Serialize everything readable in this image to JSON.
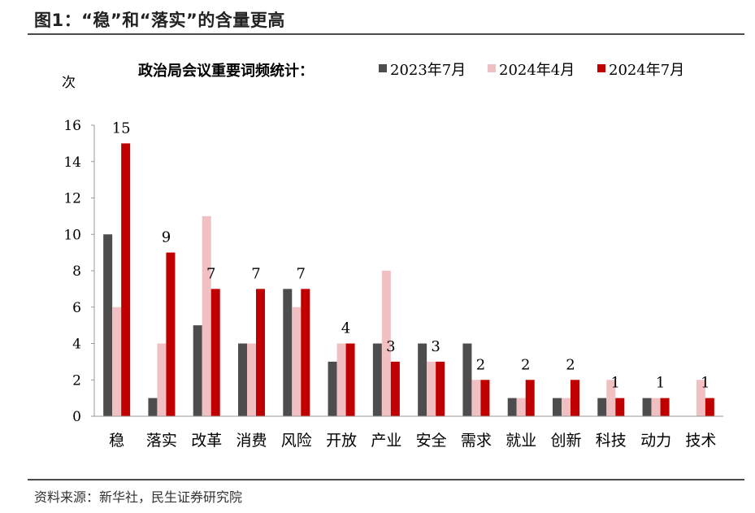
{
  "figure_title": "图1：“稳”和“落实”的含量更高",
  "source": "资料来源：新华社，民生证券研究院",
  "colors": {
    "s2023_07": "#4d4d4d",
    "s2024_04": "#f0c0c3",
    "s2024_07": "#c00000"
  },
  "chart_data": {
    "type": "bar",
    "title": "政治局会议重要词频统计：",
    "ylabel": "次",
    "xlabel": "",
    "ylim": [
      0,
      16
    ],
    "yticks": [
      0,
      2,
      4,
      6,
      8,
      10,
      12,
      14,
      16
    ],
    "grid": false,
    "legend_position": "top",
    "categories": [
      "稳",
      "落实",
      "改革",
      "消费",
      "风险",
      "开放",
      "产业",
      "安全",
      "需求",
      "就业",
      "创新",
      "科技",
      "动力",
      "技术"
    ],
    "series": [
      {
        "name": "2023年7月",
        "values": [
          10,
          1,
          5,
          4,
          7,
          3,
          4,
          4,
          4,
          1,
          1,
          1,
          1,
          0
        ]
      },
      {
        "name": "2024年4月",
        "values": [
          6,
          4,
          11,
          4,
          6,
          4,
          8,
          3,
          2,
          1,
          1,
          2,
          1,
          2
        ]
      },
      {
        "name": "2024年7月",
        "values": [
          15,
          9,
          7,
          7,
          7,
          4,
          3,
          3,
          2,
          2,
          2,
          1,
          1,
          1
        ]
      }
    ],
    "data_labels": [
      "15",
      "9",
      "7",
      "7",
      "7",
      "4",
      "3",
      "3",
      "2",
      "2",
      "2",
      "1",
      "1",
      "1"
    ]
  }
}
